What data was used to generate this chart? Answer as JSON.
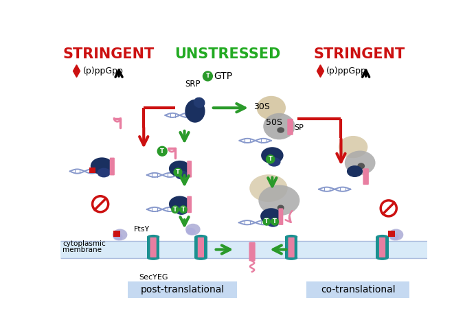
{
  "title_left": "STRINGENT",
  "title_center": "UNSTRESSED",
  "title_right": "STRINGENT",
  "color_stringent": "#cc1111",
  "color_unstressed": "#22aa22",
  "color_dark_blue": "#1a3060",
  "color_mid_blue": "#253a78",
  "color_teal": "#1a9090",
  "color_pink": "#e87ea1",
  "color_lb": "#8899cc",
  "color_tan": "#d4c5a0",
  "color_gray_50s": "#aaaaaa",
  "color_gray_right": "#b0b0b0",
  "color_green": "#2a9a2a",
  "color_red": "#cc1111",
  "color_membrane": "#d8eaf8",
  "color_label_bg": "#c5d9f1",
  "color_ftsy": "#9090bb",
  "color_bg": "#ffffff",
  "label_pppgpp": "(p)ppGpp",
  "label_gtp": "GTP",
  "label_30s": "30S",
  "label_50s": "50S",
  "label_sp": "SP",
  "label_ftsy": "FtsY",
  "label_secyeg": "SecYEG",
  "label_srp": "SRP",
  "label_cytoplasmic": "cytoplasmic",
  "label_membrane": "membrane",
  "label_post": "post-translational",
  "label_co": "co-translational"
}
